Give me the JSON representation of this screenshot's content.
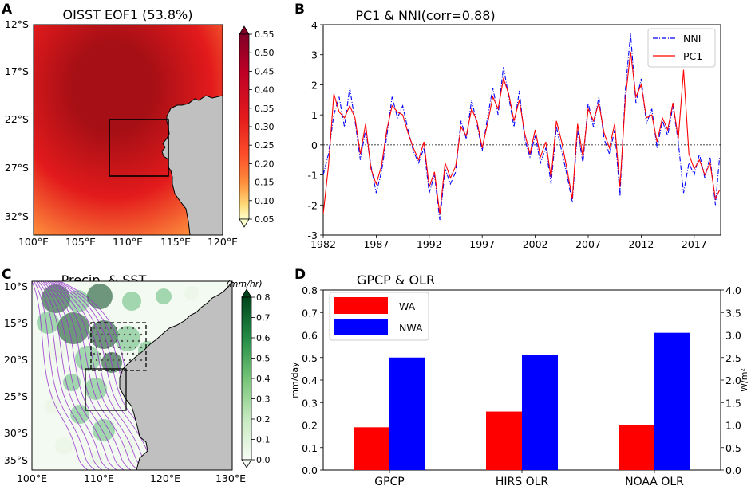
{
  "panels": {
    "A": {
      "letter": "A",
      "title": "OISST EOF1 (53.8%)",
      "lat_labels": [
        "12°S",
        "17°S",
        "22°S",
        "27°S",
        "32°S"
      ],
      "lon_labels": [
        "100°E",
        "105°E",
        "110°E",
        "115°E",
        "120°E"
      ],
      "colorbar_ticks": [
        "0.55",
        "0.50",
        "0.45",
        "0.40",
        "0.35",
        "0.30",
        "0.25",
        "0.20",
        "0.15",
        "0.10",
        "0.05"
      ],
      "colors": {
        "max": "#a50f15",
        "mid": "#e31a1c",
        "low": "#fd8d3c",
        "min": "#ffffcc",
        "land": "#c0c0c0"
      }
    },
    "B": {
      "letter": "B",
      "title": "PC1 & NNI(corr=0.88)",
      "legend": [
        "NNI",
        "PC1"
      ],
      "colors": {
        "NNI": "#0000ff",
        "PC1": "#ff0000"
      }
    },
    "C": {
      "letter": "C",
      "title": "Precip. & SST",
      "unit": "(mm/hr)",
      "lat_labels": [
        "10°S",
        "15°S",
        "20°S",
        "25°S",
        "30°S",
        "35°S"
      ],
      "lon_labels": [
        "100°E",
        "110°E",
        "120°E",
        "130°E"
      ],
      "colorbar_ticks": [
        "0.8",
        "0.7",
        "0.6",
        "0.5",
        "0.4",
        "0.3",
        "0.2",
        "0.1",
        "0.0"
      ],
      "colors": {
        "precip_high": "#00441b",
        "precip_mid": "#41ab5d",
        "precip_low": "#e5f5e0",
        "contour": "#9933cc",
        "land": "#c0c0c0"
      }
    },
    "D": {
      "letter": "D",
      "title": "GPCP & OLR",
      "colors": {
        "WA": "#ff0000",
        "NWA": "#0000ff"
      }
    }
  },
  "chart_data": [
    {
      "type": "line",
      "panel": "B",
      "title": "PC1 & NNI(corr=0.88)",
      "xlabel": "",
      "ylabel": "",
      "xlim": [
        1982,
        2019.5
      ],
      "ylim": [
        -3,
        4
      ],
      "x_ticks": [
        1982,
        1987,
        1992,
        1997,
        2002,
        2007,
        2012,
        2017
      ],
      "y_ticks": [
        -3,
        -2,
        -1,
        0,
        1,
        2,
        3,
        4
      ],
      "reference_line": 0,
      "series": [
        {
          "name": "NNI",
          "style": "dash-dot",
          "x": [
            1982.0,
            1982.5,
            1983.0,
            1983.5,
            1984.0,
            1984.5,
            1985.0,
            1985.5,
            1986.0,
            1986.5,
            1987.0,
            1987.5,
            1988.0,
            1988.5,
            1989.0,
            1989.5,
            1990.0,
            1990.5,
            1991.0,
            1991.5,
            1992.0,
            1992.5,
            1993.0,
            1993.5,
            1994.0,
            1994.5,
            1995.0,
            1995.5,
            1996.0,
            1996.5,
            1997.0,
            1997.5,
            1998.0,
            1998.5,
            1999.0,
            1999.5,
            2000.0,
            2000.5,
            2001.0,
            2001.5,
            2002.0,
            2002.5,
            2003.0,
            2003.5,
            2004.0,
            2004.5,
            2005.0,
            2005.5,
            2006.0,
            2006.5,
            2007.0,
            2007.5,
            2008.0,
            2008.5,
            2009.0,
            2009.5,
            2010.0,
            2010.5,
            2011.0,
            2011.5,
            2012.0,
            2012.5,
            2013.0,
            2013.5,
            2014.0,
            2014.5,
            2015.0,
            2015.5,
            2016.0,
            2016.5,
            2017.0,
            2017.5,
            2018.0,
            2018.5,
            2019.0,
            2019.4
          ],
          "values": [
            -1.0,
            -0.3,
            1.0,
            1.6,
            0.6,
            1.9,
            0.8,
            -0.5,
            0.5,
            -0.7,
            -1.6,
            -0.9,
            0.3,
            1.6,
            0.9,
            1.3,
            0.5,
            -0.2,
            -0.6,
            -0.1,
            -1.6,
            -1.0,
            -2.5,
            -0.8,
            -1.3,
            -0.9,
            0.8,
            0.2,
            1.5,
            0.7,
            -0.2,
            0.9,
            1.9,
            1.0,
            2.6,
            1.6,
            0.6,
            1.8,
            0.2,
            -0.4,
            0.3,
            -0.6,
            -0.1,
            -1.3,
            0.6,
            -0.2,
            -1.0,
            -1.9,
            0.5,
            -0.6,
            1.4,
            0.6,
            1.6,
            0.2,
            -0.3,
            0.5,
            -1.7,
            1.8,
            3.7,
            1.4,
            2.2,
            0.7,
            1.2,
            -0.1,
            0.8,
            0.3,
            1.3,
            0.1,
            -1.6,
            -0.6,
            -1.0,
            -0.3,
            -1.1,
            -0.4,
            -2.0,
            -0.4
          ]
        },
        {
          "name": "PC1",
          "style": "solid",
          "x": [
            1982.0,
            1982.5,
            1983.0,
            1983.5,
            1984.0,
            1984.5,
            1985.0,
            1985.5,
            1986.0,
            1986.5,
            1987.0,
            1987.5,
            1988.0,
            1988.5,
            1989.0,
            1989.5,
            1990.0,
            1990.5,
            1991.0,
            1991.5,
            1992.0,
            1992.5,
            1993.0,
            1993.5,
            1994.0,
            1994.5,
            1995.0,
            1995.5,
            1996.0,
            1996.5,
            1997.0,
            1997.5,
            1998.0,
            1998.5,
            1999.0,
            1999.5,
            2000.0,
            2000.5,
            2001.0,
            2001.5,
            2002.0,
            2002.5,
            2003.0,
            2003.5,
            2004.0,
            2004.5,
            2005.0,
            2005.5,
            2006.0,
            2006.5,
            2007.0,
            2007.5,
            2008.0,
            2008.5,
            2009.0,
            2009.5,
            2010.0,
            2010.5,
            2011.0,
            2011.5,
            2012.0,
            2012.5,
            2013.0,
            2013.5,
            2014.0,
            2014.5,
            2015.0,
            2015.5,
            2016.0,
            2016.5,
            2017.0,
            2017.5,
            2018.0,
            2018.5,
            2019.0,
            2019.4
          ],
          "values": [
            -2.3,
            -0.7,
            1.7,
            1.1,
            0.9,
            1.3,
            0.9,
            -0.3,
            0.7,
            -0.8,
            -1.3,
            -0.7,
            0.5,
            1.3,
            1.1,
            1.0,
            0.4,
            -0.1,
            -0.5,
            0.1,
            -1.4,
            -0.9,
            -2.3,
            -0.6,
            -1.1,
            -0.7,
            0.6,
            0.3,
            1.2,
            0.8,
            -0.1,
            0.7,
            1.6,
            1.2,
            2.2,
            1.7,
            0.8,
            1.5,
            0.4,
            -0.3,
            0.5,
            -0.4,
            0.1,
            -1.1,
            0.8,
            0.1,
            -0.8,
            -1.8,
            0.7,
            -0.4,
            1.2,
            0.8,
            1.4,
            0.4,
            -0.1,
            0.7,
            -1.4,
            1.5,
            3.1,
            1.6,
            2.0,
            0.9,
            1.0,
            0.1,
            0.9,
            0.5,
            1.4,
            0.2,
            2.5,
            -0.3,
            -0.8,
            -0.5,
            -1.0,
            -0.6,
            -1.8,
            -1.5
          ]
        }
      ]
    },
    {
      "type": "bar",
      "panel": "D",
      "title": "GPCP & OLR",
      "categories": [
        "GPCP",
        "HIRS OLR",
        "NOAA OLR"
      ],
      "ylabel": "mm/day",
      "ylabel_right": "W/m²",
      "ylim": [
        0,
        0.8
      ],
      "ylim_right": [
        0,
        4.0
      ],
      "y_ticks": [
        "0.0",
        "0.1",
        "0.2",
        "0.3",
        "0.4",
        "0.5",
        "0.6",
        "0.7",
        "0.8"
      ],
      "y_ticks_right": [
        "0.0",
        "0.5",
        "1.0",
        "1.5",
        "2.0",
        "2.5",
        "3.0",
        "3.5",
        "4.0"
      ],
      "legend": "top-left",
      "series": [
        {
          "name": "WA",
          "values": [
            0.19,
            0.26,
            0.2
          ]
        },
        {
          "name": "NWA",
          "values": [
            0.5,
            0.51,
            0.61
          ]
        }
      ]
    }
  ]
}
